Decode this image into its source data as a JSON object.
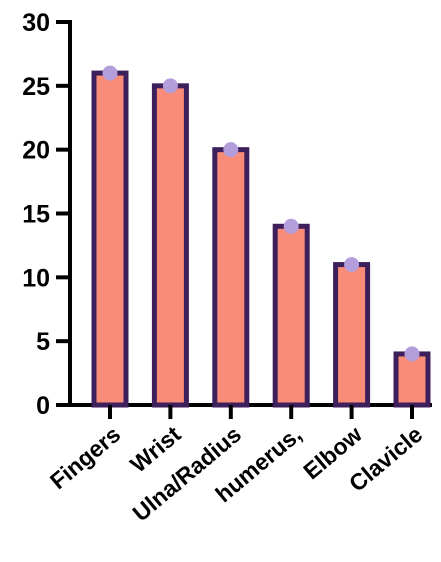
{
  "chart_data": {
    "type": "bar",
    "title": "",
    "xlabel": "",
    "ylabel": "",
    "categories": [
      "Fingers",
      "Wrist",
      "Ulna/Radius",
      "humerus,",
      "Elbow",
      "Clavicle"
    ],
    "values": [
      26,
      25,
      20,
      14,
      11,
      4
    ],
    "ylim": [
      0,
      30
    ],
    "yticks": [
      0,
      5,
      10,
      15,
      20,
      25,
      30
    ],
    "grid": false,
    "legend": "none",
    "colors": {
      "bar_fill": "#F98C79",
      "bar_outline": "#3D1F5C",
      "point": "#B39DDB",
      "axis": "#000000"
    }
  }
}
